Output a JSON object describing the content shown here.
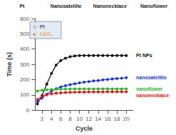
{
  "chart_data": {
    "type": "line",
    "x_label": "Cycle",
    "y_label": "Time (s)",
    "x": [
      1,
      2,
      3,
      4,
      5,
      6,
      7,
      8,
      9,
      10,
      11,
      12,
      13,
      14,
      15,
      16,
      17,
      18,
      19,
      20
    ],
    "series": [
      {
        "name": "Pt NPs",
        "color": "#111111",
        "marker": "circle",
        "values": [
          40,
          95,
          170,
          240,
          295,
          325,
          340,
          350,
          355,
          358,
          358,
          358,
          358,
          358,
          358,
          358,
          358,
          358,
          358,
          358
        ]
      },
      {
        "name": "nanosatellite",
        "color": "#1a35e8",
        "marker": "circle",
        "values": [
          55,
          80,
          105,
          125,
          140,
          152,
          160,
          167,
          173,
          178,
          183,
          187,
          191,
          194,
          198,
          201,
          204,
          207,
          209,
          212
        ]
      },
      {
        "name": "nanoflower",
        "color": "#22bb22",
        "marker": "circle",
        "values": [
          125,
          130,
          133,
          135,
          136,
          137,
          138,
          138,
          139,
          139,
          139,
          139,
          139,
          139,
          139,
          139,
          139,
          139,
          139,
          139
        ]
      },
      {
        "name": "nanonecklace",
        "color": "#ee1111",
        "marker": "circle",
        "values": [
          70,
          90,
          100,
          107,
          111,
          113,
          115,
          116,
          117,
          118,
          118,
          119,
          119,
          119,
          119,
          120,
          120,
          120,
          120,
          120
        ]
      }
    ],
    "xlim": [
      0.5,
      21.5
    ],
    "xticks": [
      2,
      4,
      6,
      8,
      10,
      12,
      14,
      16,
      18,
      20
    ],
    "ylim": [
      0,
      600
    ],
    "yticks": [
      0,
      100,
      200,
      300,
      400,
      500,
      600
    ],
    "grid": false,
    "annotations": [
      {
        "text": "○ : Pt",
        "color": "#111111"
      },
      {
        "text": "● : CeO₂",
        "color": "#f5820a"
      },
      {
        "text": "Pt"
      },
      {
        "text": "Nanosatellite"
      },
      {
        "text": "Nanonecklace"
      },
      {
        "text": "Nanoflower"
      }
    ]
  }
}
